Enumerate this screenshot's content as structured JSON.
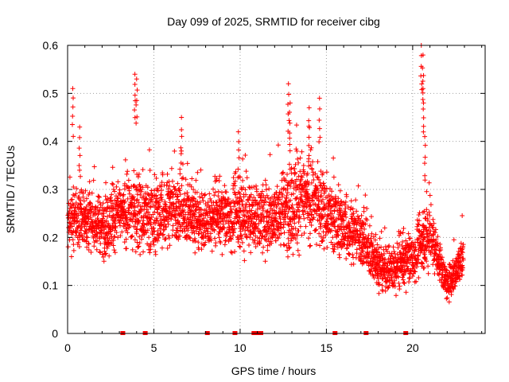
{
  "chart_data": {
    "type": "scatter",
    "title": "Day 099 of 2025, SRMTID for receiver cibg",
    "xlabel": "GPS time / hours",
    "ylabel": "SRMTID / TECUs",
    "xlim": [
      0,
      24.2
    ],
    "ylim": [
      0,
      0.6
    ],
    "x_ticks": [
      0,
      5,
      10,
      15,
      20
    ],
    "y_ticks": [
      0,
      0.1,
      0.2,
      0.3,
      0.4,
      0.5,
      0.6
    ],
    "x_tick_labels": [
      "0",
      "5",
      "10",
      "15",
      "20"
    ],
    "y_tick_labels": [
      "0",
      "0.1",
      "0.2",
      "0.3",
      "0.4",
      "0.5",
      "0.6"
    ],
    "grid": true,
    "marker": "+",
    "color": "#ff0000",
    "baseline_marks_x": [
      3.2,
      4.5,
      8.1,
      9.7,
      10.8,
      11.0,
      11.2,
      15.5,
      17.3,
      19.6
    ],
    "envelope": {
      "x": [
        0,
        1,
        2,
        3,
        4,
        5,
        6,
        7,
        8,
        9,
        10,
        11,
        12,
        13,
        14,
        15,
        16,
        17,
        18,
        19,
        20,
        21,
        22,
        23
      ],
      "center": [
        0.23,
        0.24,
        0.22,
        0.25,
        0.25,
        0.24,
        0.26,
        0.25,
        0.23,
        0.24,
        0.25,
        0.24,
        0.24,
        0.27,
        0.28,
        0.25,
        0.22,
        0.2,
        0.14,
        0.13,
        0.16,
        0.21,
        0.1,
        0.16
      ],
      "spread": [
        0.06,
        0.06,
        0.06,
        0.06,
        0.08,
        0.07,
        0.07,
        0.07,
        0.06,
        0.06,
        0.07,
        0.07,
        0.07,
        0.09,
        0.09,
        0.07,
        0.06,
        0.06,
        0.05,
        0.05,
        0.05,
        0.06,
        0.03,
        0.05
      ]
    },
    "peaks": [
      {
        "x": 0.3,
        "y": 0.51
      },
      {
        "x": 0.7,
        "y": 0.43
      },
      {
        "x": 3.9,
        "y": 0.54
      },
      {
        "x": 4.0,
        "y": 0.53
      },
      {
        "x": 6.6,
        "y": 0.45
      },
      {
        "x": 9.9,
        "y": 0.42
      },
      {
        "x": 12.8,
        "y": 0.52
      },
      {
        "x": 12.9,
        "y": 0.48
      },
      {
        "x": 14.0,
        "y": 0.47
      },
      {
        "x": 14.6,
        "y": 0.49
      },
      {
        "x": 20.5,
        "y": 0.6
      },
      {
        "x": 20.6,
        "y": 0.58
      },
      {
        "x": 20.6,
        "y": 0.51
      },
      {
        "x": 20.7,
        "y": 0.41
      }
    ]
  }
}
